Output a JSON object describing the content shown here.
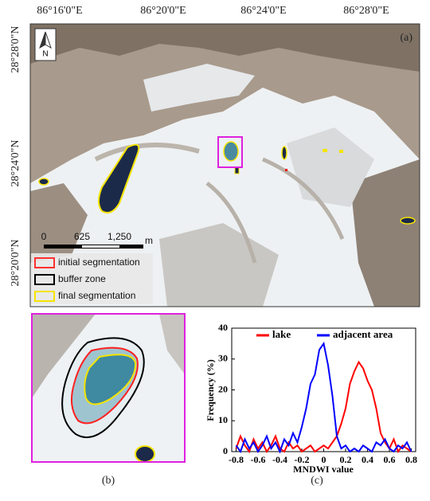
{
  "map": {
    "top_labels": [
      "86°16'0\"E",
      "86°20'0\"E",
      "86°24'0\"E",
      "86°28'0\"E"
    ],
    "left_labels": [
      "28°28'0\"N",
      "28°24'0\"N",
      "28°20'0\"N"
    ],
    "panel_label": "(a)",
    "north": "N",
    "scale_labels": [
      "0",
      "625",
      "1,250",
      "m"
    ],
    "legend": [
      "initial segmentation",
      "buffer zone",
      "final segmentation"
    ]
  },
  "inset": {
    "panel_label": "(b)"
  },
  "chart_data": {
    "type": "line",
    "panel_label": "(c)",
    "xlabel": "MNDWI value",
    "ylabel": "Frequency (%)",
    "x": [
      -0.8,
      -0.76,
      -0.72,
      -0.68,
      -0.64,
      -0.6,
      -0.56,
      -0.52,
      -0.48,
      -0.44,
      -0.4,
      -0.36,
      -0.32,
      -0.28,
      -0.24,
      -0.2,
      -0.16,
      -0.12,
      -0.08,
      -0.04,
      0,
      0.04,
      0.08,
      0.12,
      0.16,
      0.2,
      0.24,
      0.28,
      0.32,
      0.36,
      0.4,
      0.44,
      0.48,
      0.52,
      0.56,
      0.6,
      0.64,
      0.68,
      0.72,
      0.76,
      0.8
    ],
    "series": [
      {
        "name": "lake",
        "color": "#ff0000",
        "values": [
          1,
          5,
          2,
          0,
          4,
          1,
          3,
          0,
          2,
          5,
          1,
          0,
          3,
          1,
          2,
          0,
          1,
          2,
          0,
          1,
          2,
          1,
          3,
          5,
          9,
          14,
          22,
          26,
          29,
          27,
          23,
          20,
          14,
          6,
          3,
          1,
          4,
          0,
          2,
          1,
          0
        ]
      },
      {
        "name": "adjacent area",
        "color": "#0000ff",
        "values": [
          2,
          0,
          4,
          1,
          3,
          0,
          2,
          5,
          1,
          3,
          0,
          4,
          2,
          6,
          3,
          8,
          14,
          22,
          25,
          33,
          35,
          28,
          18,
          5,
          1,
          2,
          0,
          1,
          0,
          2,
          1,
          0,
          3,
          2,
          4,
          1,
          0,
          2,
          1,
          3,
          0
        ]
      }
    ],
    "xlim": [
      -0.84,
      0.84
    ],
    "ylim": [
      0,
      40
    ],
    "xticks": [
      -0.8,
      -0.6,
      -0.4,
      -0.2,
      0,
      0.2,
      0.4,
      0.6,
      0.8
    ],
    "yticks": [
      0,
      10,
      20,
      30,
      40
    ],
    "grid": false
  }
}
